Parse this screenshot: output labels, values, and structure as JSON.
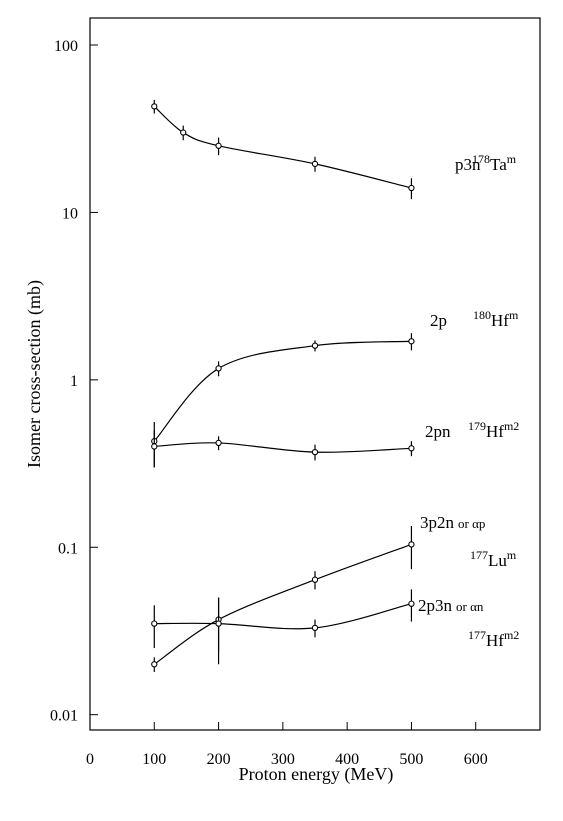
{
  "chart_data": {
    "type": "line",
    "x_label": "Proton energy (MeV)",
    "y_label": "Isomer cross-section (mb)",
    "xlim": [
      0,
      700
    ],
    "xticks": [
      0,
      100,
      200,
      300,
      400,
      500,
      600
    ],
    "ylim": [
      0.0081,
      145
    ],
    "yticks": [
      0.01,
      0.1,
      1,
      10,
      100
    ],
    "log_y": true,
    "color": "#000000",
    "series": [
      {
        "reaction": "p3n",
        "mass": "178",
        "element": "Ta",
        "state": "m",
        "x": [
          100,
          145,
          200,
          350,
          500
        ],
        "values": [
          43,
          30,
          25,
          19.5,
          14
        ],
        "errors": [
          4,
          3,
          3,
          2,
          2
        ]
      },
      {
        "reaction": "2p",
        "mass": "180",
        "element": "Hf",
        "state": "m",
        "x": [
          100,
          200,
          350,
          500
        ],
        "values": [
          0.43,
          1.17,
          1.6,
          1.7
        ],
        "errors": [
          0.13,
          0.12,
          0.12,
          0.2
        ]
      },
      {
        "reaction": "2pn",
        "mass": "179",
        "element": "Hf",
        "state": "m2",
        "x": [
          100,
          200,
          350,
          500
        ],
        "values": [
          0.4,
          0.42,
          0.37,
          0.39
        ],
        "errors": [
          0.1,
          0.04,
          0.04,
          0.04
        ]
      },
      {
        "reaction": "3p2n",
        "alt": "or αp",
        "mass": "177",
        "element": "Lu",
        "state": "m",
        "x": [
          100,
          200,
          350,
          500
        ],
        "values": [
          0.02,
          0.037,
          0.064,
          0.104
        ],
        "errors": [
          0.002,
          0.013,
          0.008,
          0.03
        ]
      },
      {
        "reaction": "2p3n",
        "alt": "or αn",
        "mass": "177",
        "element": "Hf",
        "state": "m2",
        "x": [
          100,
          200,
          350,
          500
        ],
        "values": [
          0.035,
          0.035,
          0.033,
          0.046
        ],
        "errors": [
          0.01,
          0.015,
          0.004,
          0.01
        ]
      }
    ]
  }
}
